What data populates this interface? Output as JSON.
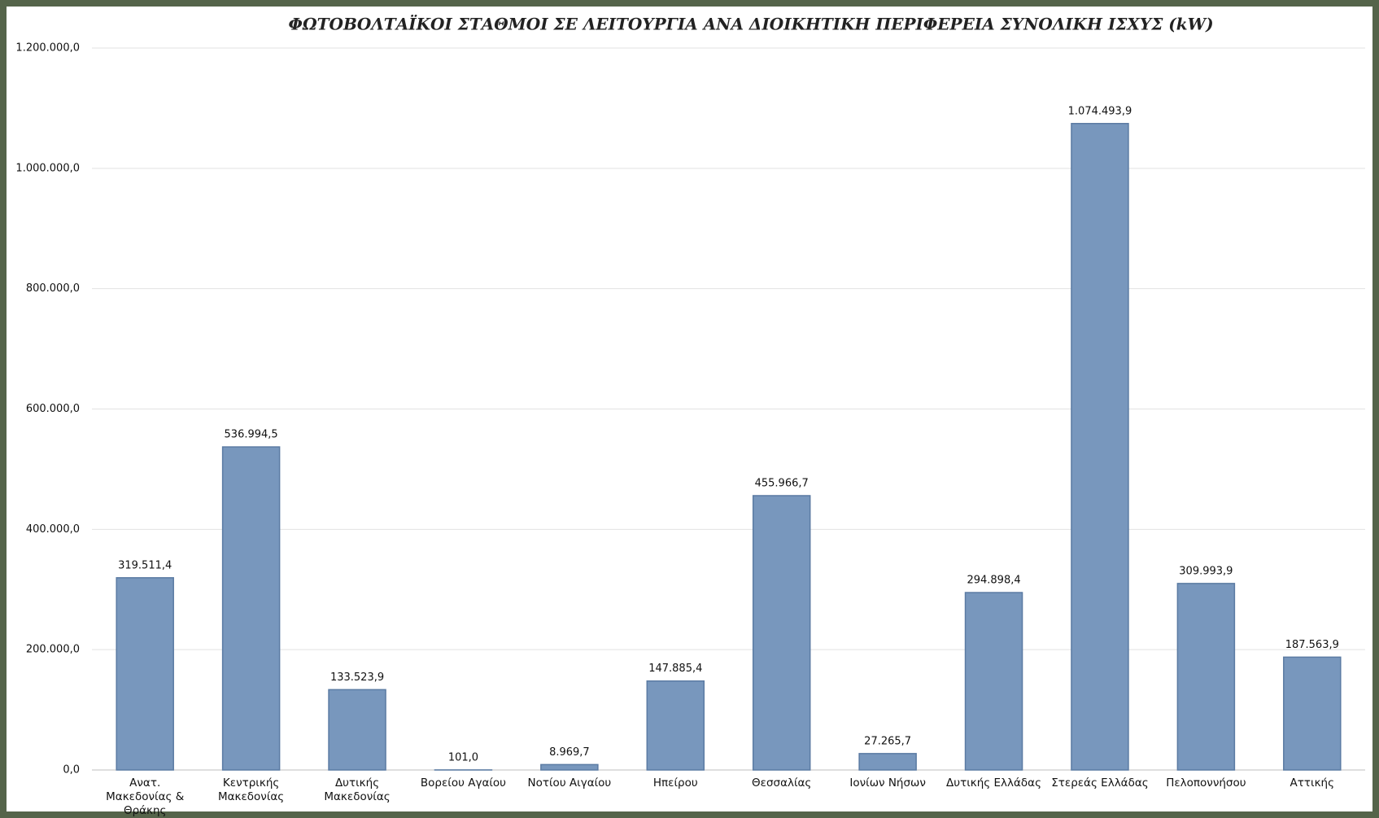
{
  "chart_data": {
    "type": "bar",
    "title": "ΦΩΤΟΒΟΛΤΑΪΚΟΙ ΣΤΑΘΜΟΙ ΣΕ ΛΕΙΤΟΥΡΓΙΑ ΑΝΑ ΔΙΟΙΚΗΤΙΚΗ ΠΕΡΙΦΕΡΕΙΑ ΣΥΝΟΛΙΚΗ ΙΣΧΥΣ (kW)",
    "categories": [
      "Ανατ. Μακεδονίας & Θράκης",
      "Κεντρικής Μακεδονίας",
      "Δυτικής Μακεδονίας",
      "Βορείου Αγαίου",
      "Νοτίου Αιγαίου",
      "Ηπείρου",
      "Θεσσαλίας",
      "Ιονίων Νήσων",
      "Δυτικής Ελλάδας",
      "Στερεάς Ελλάδας",
      "Πελοποννήσου",
      "Αττικής"
    ],
    "values": [
      319511.4,
      536994.5,
      133523.9,
      101.0,
      8969.7,
      147885.4,
      455966.7,
      27265.7,
      294898.4,
      1074493.9,
      309993.9,
      187563.9
    ],
    "value_labels": [
      "319.511,4",
      "536.994,5",
      "133.523,9",
      "101,0",
      "8.969,7",
      "147.885,4",
      "455.966,7",
      "27.265,7",
      "294.898,4",
      "1.074.493,9",
      "309.993,9",
      "187.563,9"
    ],
    "color": "#7897bd",
    "ylim": [
      0,
      1200000
    ],
    "yticks": [
      {
        "value": 0,
        "label": "0,0"
      },
      {
        "value": 200000,
        "label": "200.000,0"
      },
      {
        "value": 400000,
        "label": "400.000,0"
      },
      {
        "value": 600000,
        "label": "600.000,0"
      },
      {
        "value": 800000,
        "label": "800.000,0"
      },
      {
        "value": 1000000,
        "label": "1.000.000,0"
      },
      {
        "value": 1200000,
        "label": "1.200.000,0"
      }
    ],
    "grid": true
  }
}
